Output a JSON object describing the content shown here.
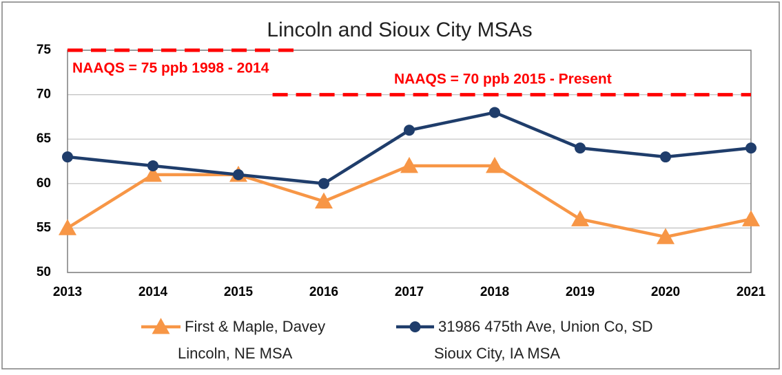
{
  "chart_data": {
    "type": "line",
    "title": "Lincoln and Sioux City MSAs",
    "x": [
      2013,
      2014,
      2015,
      2016,
      2017,
      2018,
      2019,
      2020,
      2021
    ],
    "xlim": [
      2013,
      2021
    ],
    "xticks": [
      2013,
      2014,
      2015,
      2016,
      2017,
      2018,
      2019,
      2020,
      2021
    ],
    "ylim": [
      50,
      75
    ],
    "yticks": [
      50,
      55,
      60,
      65,
      70,
      75
    ],
    "grid": true,
    "series": [
      {
        "name": "First & Maple, Davey",
        "legend_sublabel": "Lincoln, NE MSA",
        "color": "#f79646",
        "marker": "triangle",
        "values": [
          55,
          61,
          61,
          58,
          62,
          62,
          56,
          54,
          56
        ]
      },
      {
        "name": "31986 475th Ave, Union Co, SD",
        "legend_sublabel": "Sioux City, IA MSA",
        "color": "#1f3d6b",
        "marker": "circle",
        "values": [
          63,
          62,
          61,
          60,
          66,
          68,
          64,
          63,
          64
        ]
      }
    ],
    "reference_lines": [
      {
        "label": "NAAQS = 75 ppb 1998 - 2014",
        "value": 75,
        "x": [
          2013,
          2015.65
        ],
        "color": "#ff0000"
      },
      {
        "label": "NAAQS = 70 ppb 2015 - Present",
        "value": 70,
        "x": [
          2015.4,
          2021
        ],
        "color": "#ff0000"
      }
    ]
  }
}
